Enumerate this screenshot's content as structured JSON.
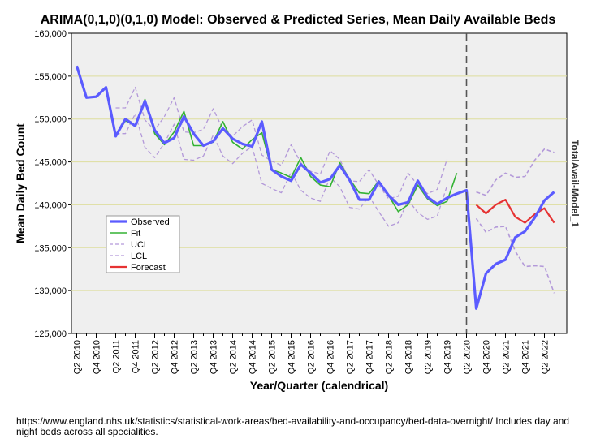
{
  "chart_data": {
    "type": "line",
    "title": "ARIMA(0,1,0)(0,1,0) Model: Observed & Predicted Series, Mean Daily Available Beds",
    "xlabel": "Year/Quarter (calendrical)",
    "ylabel": "Mean Daily Bed Count",
    "side_label": "TotalAvail-Model_1",
    "ylim": [
      125000,
      160000
    ],
    "y_ticks": [
      "125,000",
      "130,000",
      "135,000",
      "140,000",
      "145,000",
      "150,000",
      "155,000",
      "160,000"
    ],
    "y_tick_values": [
      125000,
      130000,
      135000,
      140000,
      145000,
      150000,
      155000,
      160000
    ],
    "x_tick_labels": [
      "Q2 2010",
      "Q4 2010",
      "Q2 2011",
      "Q4 2011",
      "Q2 2012",
      "Q4 2012",
      "Q2 2013",
      "Q4 2013",
      "Q2 2014",
      "Q4 2014",
      "Q2 2015",
      "Q4 2015",
      "Q2 2016",
      "Q4 2016",
      "Q2 2017",
      "Q4 2017",
      "Q2 2018",
      "Q4 2018",
      "Q2 2019",
      "Q4 2019",
      "Q2 2020",
      "Q4 2020",
      "Q2 2021",
      "Q4 2021",
      "Q2 2022"
    ],
    "forecast_start_index": 20,
    "colors": {
      "observed": "#5b5bff",
      "fit": "#33b233",
      "ucl": "#b399d9",
      "lcl": "#b399d9",
      "forecast": "#e63333",
      "plot_bg": "#efefef",
      "grid": "#dede9e",
      "divider": "#555555"
    },
    "legend": [
      "Observed",
      "Fit",
      "UCL",
      "LCL",
      "Forecast"
    ],
    "series": [
      {
        "name": "Observed",
        "start": 0,
        "values": [
          156200,
          152500,
          152600,
          153700,
          148000,
          150000,
          149200,
          152100,
          148700,
          147200,
          147800,
          150300,
          148300,
          146900,
          147400,
          148900,
          147700,
          147100,
          146800,
          149700,
          144100,
          143300,
          142800,
          144700,
          143700,
          142600,
          143000,
          144600,
          142900,
          140600,
          140600,
          142700,
          141100,
          140000,
          140300,
          142800,
          140900,
          140100,
          140800,
          141300,
          141700,
          127900,
          132000,
          133100,
          133600,
          136200,
          136900,
          138500,
          140500,
          141500
        ]
      },
      {
        "name": "Fit",
        "start": 2,
        "values": [
          152500,
          153700,
          148000,
          149800,
          149200,
          152300,
          148300,
          147000,
          148500,
          150900,
          146900,
          146900,
          147300,
          149700,
          147300,
          146500,
          147600,
          148400,
          144100,
          143700,
          143200,
          145500,
          143300,
          142300,
          142100,
          144900,
          143000,
          141400,
          141300,
          142800,
          141100,
          139200,
          140000,
          142300,
          140700,
          139900,
          140400,
          143700
        ]
      },
      {
        "name": "UCL",
        "start": 4,
        "values": [
          151300,
          151300,
          153700,
          149900,
          148700,
          150300,
          152500,
          148500,
          148400,
          148800,
          151200,
          148800,
          148000,
          149100,
          149900,
          145800,
          145100,
          144600,
          147000,
          144900,
          143900,
          143600,
          146300,
          145300,
          142800,
          142700,
          144100,
          142300,
          140700,
          141000,
          143700,
          142300,
          141300,
          141800,
          145300
        ]
      },
      {
        "name": "LCL",
        "start": 4,
        "values": [
          148300,
          148300,
          150600,
          146700,
          145500,
          147200,
          149400,
          145300,
          145200,
          145700,
          148100,
          145700,
          144800,
          146000,
          146800,
          142500,
          141900,
          141400,
          143800,
          141700,
          140800,
          140400,
          143200,
          142100,
          139700,
          139500,
          141000,
          139200,
          137500,
          137900,
          140600,
          139100,
          138300,
          138700,
          142200
        ]
      },
      {
        "name": "Forecast",
        "start": 41,
        "values": [
          140000,
          139000,
          140000,
          140600,
          138600,
          137900,
          138900,
          139600,
          137900
        ]
      },
      {
        "name": "UCL forecast",
        "start": 41,
        "values": [
          141500,
          141100,
          142900,
          143700,
          143200,
          143300,
          145200,
          146500,
          146100
        ]
      },
      {
        "name": "LCL forecast",
        "start": 41,
        "values": [
          138400,
          136800,
          137400,
          137500,
          134600,
          132800,
          132900,
          132800,
          129700
        ]
      }
    ]
  },
  "source_note": "https://www.england.nhs.uk/statistics/statistical-work-areas/bed-availability-and-occupancy/bed-data-overnight/  Includes day and night beds across all specialities."
}
